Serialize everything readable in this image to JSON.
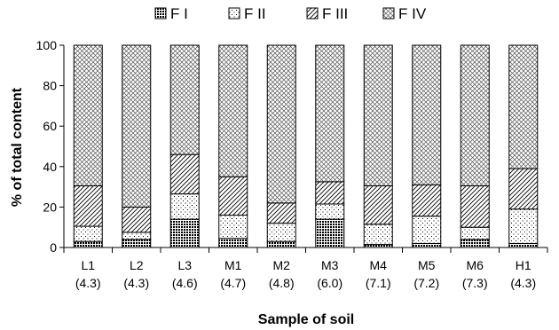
{
  "chart_data": {
    "type": "bar",
    "stacked": true,
    "title": "",
    "xlabel": "Sample of soil",
    "ylabel": "% of total content",
    "ylim": [
      0,
      100
    ],
    "yticks": [
      "0",
      "20",
      "40",
      "60",
      "80",
      "100"
    ],
    "grid": false,
    "legend_position": "top",
    "categories": [
      "L1",
      "L2",
      "L3",
      "M1",
      "M2",
      "M3",
      "M4",
      "M5",
      "M6",
      "H1"
    ],
    "category_sublabels": [
      "(4.3)",
      "(4.3)",
      "(4.6)",
      "(4.7)",
      "(4.8)",
      "(6.0)",
      "(7.1)",
      "(7.2)",
      "(7.3)",
      "(4.3)"
    ],
    "series": [
      {
        "name": "F I",
        "pattern": "dense-dots",
        "values": [
          3,
          4,
          14,
          4.5,
          3,
          14,
          1.5,
          2,
          4,
          2
        ]
      },
      {
        "name": "F II",
        "pattern": "sparse-dots",
        "values": [
          7.5,
          3.5,
          12.5,
          11.5,
          9,
          7.5,
          10,
          13.5,
          6,
          17
        ]
      },
      {
        "name": "F III",
        "pattern": "diagonal",
        "values": [
          20,
          12.5,
          19.5,
          19,
          10,
          11,
          19,
          15.5,
          20.5,
          20
        ]
      },
      {
        "name": "F IV",
        "pattern": "crosshatch",
        "values": [
          69.5,
          80,
          54,
          65,
          78,
          67.5,
          69.5,
          69,
          69.5,
          61
        ]
      }
    ]
  }
}
